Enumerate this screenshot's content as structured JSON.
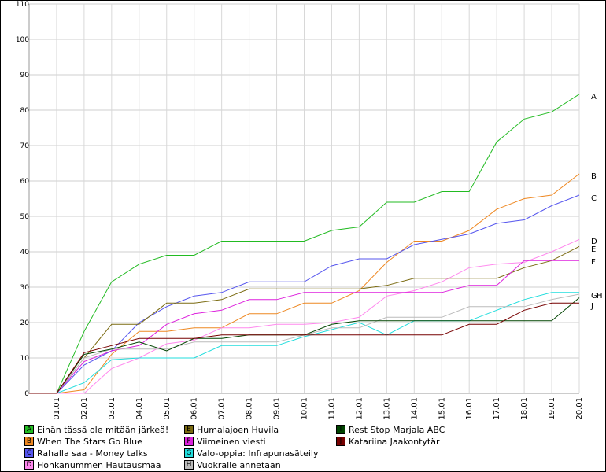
{
  "chart_data": {
    "type": "line",
    "categories": [
      "",
      "01.01",
      "02.01",
      "03.01",
      "04.01",
      "05.01",
      "06.01",
      "07.01",
      "08.01",
      "09.01",
      "10.01",
      "11.01",
      "12.01",
      "13.01",
      "14.01",
      "15.01",
      "16.01",
      "17.01",
      "18.01",
      "19.01",
      "20.01"
    ],
    "ylim": [
      0,
      110
    ],
    "yticks": [
      0,
      10,
      20,
      30,
      40,
      50,
      60,
      70,
      80,
      90,
      100,
      110
    ],
    "grid": true,
    "series": [
      {
        "letter": "A",
        "name": "Eihän tässä ole mitään järkeä!",
        "color": "#22bb22",
        "values": [
          0,
          0,
          17.5,
          31.5,
          36.5,
          39,
          39,
          43,
          43,
          43,
          43,
          46,
          47,
          54,
          54,
          57,
          57,
          71,
          77.5,
          79.5,
          84.5
        ]
      },
      {
        "letter": "B",
        "name": "When The Stars Go Blue",
        "color": "#ee8822",
        "values": [
          0,
          0,
          1,
          11,
          17.5,
          17.5,
          18.5,
          18.5,
          22.5,
          22.5,
          25.5,
          25.5,
          29,
          37,
          43,
          43,
          46,
          52,
          55,
          56,
          62
        ]
      },
      {
        "letter": "C",
        "name": "Rahalla saa - Money talks",
        "color": "#5555ee",
        "values": [
          0,
          0,
          8,
          12,
          20,
          24.5,
          27.5,
          28.5,
          31.5,
          31.5,
          31.5,
          36,
          38,
          38,
          42,
          43.5,
          45,
          48,
          49,
          53,
          56
        ]
      },
      {
        "letter": "D",
        "name": "Honkanummen Hautausmaa",
        "color": "#ff88ee",
        "values": [
          0,
          0,
          0,
          7,
          10,
          14,
          15,
          18.5,
          18.5,
          19.5,
          19.5,
          20,
          21.5,
          27.5,
          29,
          31.5,
          35.5,
          36.5,
          37,
          40,
          43.5
        ]
      },
      {
        "letter": "E",
        "name": "Humalajoen Huvila",
        "color": "#7a6a10",
        "values": [
          0,
          0,
          10,
          19.5,
          19.5,
          25.5,
          25.5,
          26.5,
          29.5,
          29.5,
          29.5,
          29.5,
          29.5,
          30.5,
          32.5,
          32.5,
          32.5,
          32.5,
          35.5,
          37.5,
          41.5
        ]
      },
      {
        "letter": "F",
        "name": "Viimeinen viesti",
        "color": "#dd22dd",
        "values": [
          0,
          0,
          9,
          12,
          13.5,
          19.5,
          22.5,
          23.5,
          26.5,
          26.5,
          28.5,
          28.5,
          28.5,
          28.5,
          28.5,
          28.5,
          30.5,
          30.5,
          37.5,
          37.5,
          37.5
        ]
      },
      {
        "letter": "G",
        "name": "Valo-oppia: Infrapunasäteily",
        "color": "#22dddd",
        "values": [
          0,
          0,
          3,
          9.5,
          10,
          10,
          10,
          13.5,
          13.5,
          13.5,
          16,
          18,
          20,
          16.5,
          20.5,
          20.5,
          20.5,
          23.5,
          26.5,
          28.5,
          28.5
        ]
      },
      {
        "letter": "H",
        "name": "Vuokralle annetaan",
        "color": "#bbbbbb",
        "values": [
          0,
          0,
          10,
          12.5,
          12.5,
          12.5,
          14.5,
          14.5,
          14.5,
          14.5,
          16.5,
          18.5,
          18.5,
          21.5,
          21.5,
          21.5,
          24.5,
          24.5,
          24.5,
          26.5,
          28
        ]
      },
      {
        "letter": "I",
        "name": "Rest Stop  Marjala ABC",
        "color": "#004400",
        "values": [
          0,
          0,
          11,
          12.5,
          14.5,
          12,
          15.5,
          15.5,
          16.5,
          16.5,
          16.5,
          19.5,
          20.5,
          20.5,
          20.5,
          20.5,
          20.5,
          20.5,
          20.5,
          20.5,
          27
        ]
      },
      {
        "letter": "J",
        "name": "Katariina Jaakontytär",
        "color": "#770000",
        "values": [
          0,
          0,
          11.5,
          13.5,
          15.5,
          15.5,
          15.5,
          16.5,
          16.5,
          16.5,
          16.5,
          16.5,
          16.5,
          16.5,
          16.5,
          16.5,
          19.5,
          19.5,
          23.5,
          25.5,
          25.5
        ]
      }
    ],
    "end_labels": [
      {
        "series": "A",
        "text": "A"
      },
      {
        "series": "B",
        "text": "B"
      },
      {
        "series": "C",
        "text": "C"
      },
      {
        "series": "D",
        "text": "D"
      },
      {
        "series": "E",
        "text": "E"
      },
      {
        "series": "F",
        "text": "F"
      },
      {
        "series": "G",
        "text": "G"
      },
      {
        "series": "H",
        "text": "H"
      },
      {
        "series": "J",
        "text": "J"
      }
    ]
  },
  "legend": [
    {
      "letter": "A",
      "name": "Eihän tässä ole mitään järkeä!",
      "color": "#22bb22"
    },
    {
      "letter": "B",
      "name": "When The Stars Go Blue",
      "color": "#ee8822"
    },
    {
      "letter": "C",
      "name": "Rahalla saa - Money talks",
      "color": "#5555ee"
    },
    {
      "letter": "D",
      "name": "Honkanummen Hautausmaa",
      "color": "#ff88ee"
    },
    {
      "letter": "E",
      "name": "Humalajoen Huvila",
      "color": "#7a6a10"
    },
    {
      "letter": "F",
      "name": "Viimeinen viesti",
      "color": "#dd22dd"
    },
    {
      "letter": "G",
      "name": "Valo-oppia: Infrapunasäteily",
      "color": "#22dddd"
    },
    {
      "letter": "H",
      "name": "Vuokralle annetaan",
      "color": "#bbbbbb"
    },
    {
      "letter": "I",
      "name": "Rest Stop  Marjala ABC",
      "color": "#004400"
    },
    {
      "letter": "J",
      "name": "Katariina Jaakontytär",
      "color": "#770000"
    }
  ]
}
